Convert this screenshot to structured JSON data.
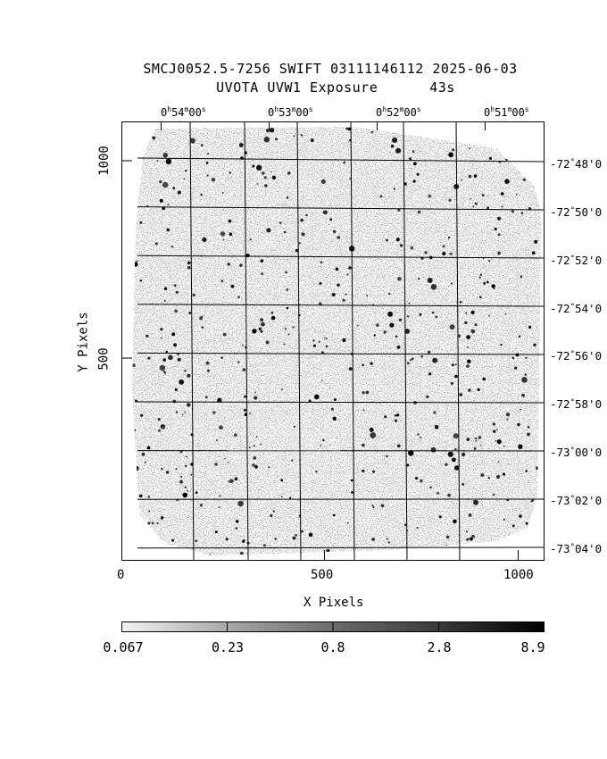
{
  "title": {
    "line1": "SMCJ0052.5-7256 SWIFT 03111146112 2025-06-03",
    "line2_left": "UVOTA UVW1 Exposure",
    "line2_right": "43s"
  },
  "axes": {
    "x_label": "X Pixels",
    "y_label": "Y Pixels",
    "x_ticks": [
      "0",
      "500",
      "1000"
    ],
    "y_ticks": [
      "500",
      "1000"
    ],
    "ra_ticks": [
      {
        "h": "0",
        "hu": "h",
        "m": "54",
        "mu": "m",
        "s": "00",
        "su": "s"
      },
      {
        "h": "0",
        "hu": "h",
        "m": "53",
        "mu": "m",
        "s": "00",
        "su": "s"
      },
      {
        "h": "0",
        "hu": "h",
        "m": "52",
        "mu": "m",
        "s": "00",
        "su": "s"
      },
      {
        "h": "0",
        "hu": "h",
        "m": "51",
        "mu": "m",
        "s": "00",
        "su": "s"
      }
    ],
    "dec_ticks": [
      {
        "d": "-72",
        "m": "48'0"
      },
      {
        "d": "-72",
        "m": "50'0"
      },
      {
        "d": "-72",
        "m": "52'0"
      },
      {
        "d": "-72",
        "m": "54'0"
      },
      {
        "d": "-72",
        "m": "56'0"
      },
      {
        "d": "-72",
        "m": "58'0"
      },
      {
        "d": "-73",
        "m": "00'0"
      },
      {
        "d": "-73",
        "m": "02'0"
      },
      {
        "d": "-73",
        "m": "04'0"
      }
    ]
  },
  "colorbar": {
    "labels": [
      "0.067",
      "0.23",
      "0.8",
      "2.8",
      "8.9"
    ]
  }
}
